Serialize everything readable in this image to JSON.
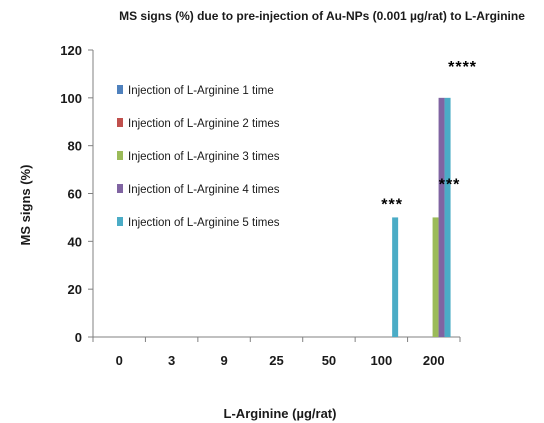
{
  "chart_data": {
    "type": "bar",
    "title": "MS signs  (%) due to pre-injection of  Au-NPs (0.001 µg/rat) to L-Arginine",
    "xlabel": "L-Arginine (µg/rat)",
    "ylabel": "MS signs  (%)",
    "categories": [
      "0",
      "3",
      "9",
      "25",
      "50",
      "100",
      "200"
    ],
    "ylim": [
      0,
      120
    ],
    "yticks": [
      0,
      20,
      40,
      60,
      80,
      100,
      120
    ],
    "grid": false,
    "legend_position": "upper-left inside plot",
    "series": [
      {
        "name": "Injection of L-Arginine 1 time",
        "color": "#4f81bd",
        "values": [
          0,
          0,
          0,
          0,
          0,
          0,
          0
        ]
      },
      {
        "name": "Injection of L-Arginine 2 times",
        "color": "#c0504d",
        "values": [
          0,
          0,
          0,
          0,
          0,
          0,
          0
        ]
      },
      {
        "name": "Injection of L-Arginine 3 times",
        "color": "#9bbb59",
        "values": [
          0,
          0,
          0,
          0,
          0,
          0,
          50
        ]
      },
      {
        "name": "Injection of L-Arginine 4 times",
        "color": "#8064a2",
        "values": [
          0,
          0,
          0,
          0,
          0,
          0,
          100
        ]
      },
      {
        "name": "Injection of L-Arginine 5 times",
        "color": "#4bacc6",
        "values": [
          0,
          0,
          0,
          0,
          0,
          50,
          100
        ]
      }
    ],
    "annotations": [
      {
        "category": "100",
        "text": "***",
        "value": 50
      },
      {
        "category": "200",
        "text": "***",
        "value": 50
      },
      {
        "category": "200",
        "text": "****",
        "value": 100
      }
    ]
  }
}
